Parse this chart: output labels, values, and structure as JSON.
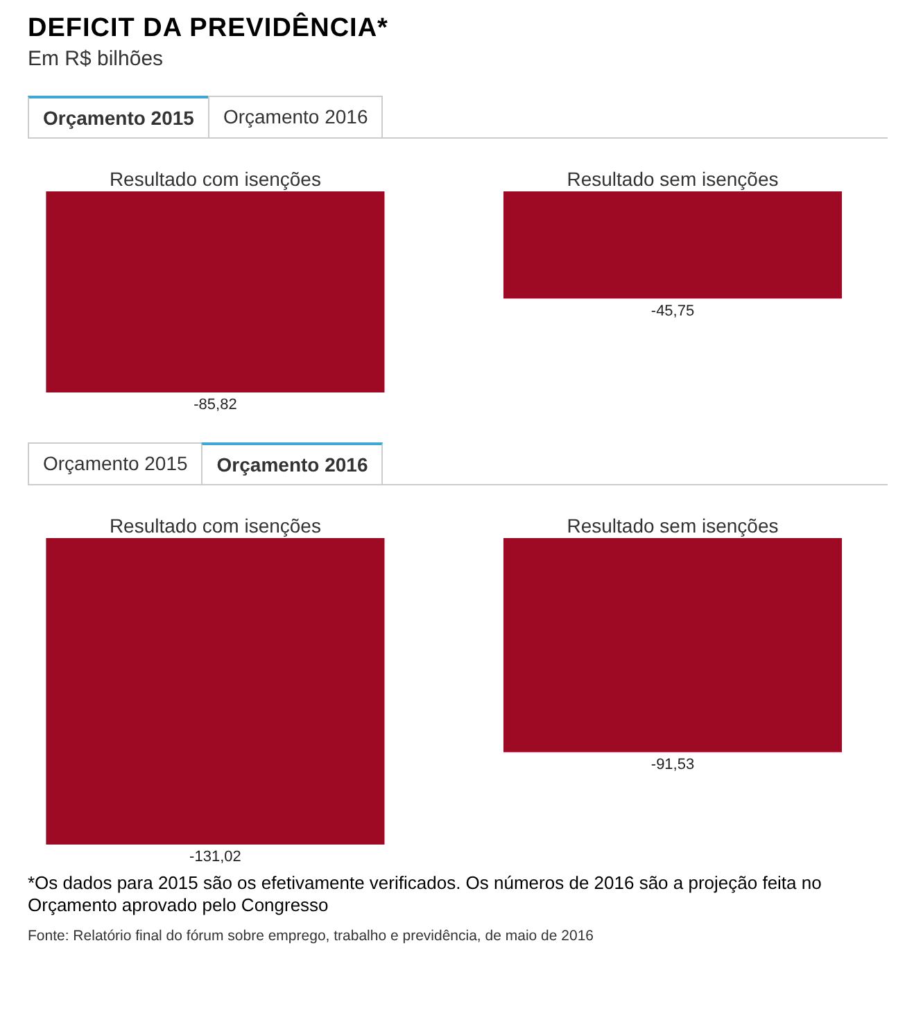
{
  "chart_data": [
    {
      "type": "bar",
      "title": "DEFICIT DA PREVIDÊNCIA*",
      "subtitle": "Em R$ bilhões",
      "categories": [
        "Resultado com isenções",
        "Resultado sem isenções"
      ],
      "values": [
        -85.82,
        -45.75
      ],
      "color": "#9e0a23",
      "value_labels": [
        "-85,82",
        "-45,75"
      ],
      "annotations": [
        "Orçamento 2015",
        "Orçamento 2016"
      ]
    },
    {
      "type": "bar",
      "categories": [
        "Resultado com isenções",
        "Resultado sem isenções"
      ],
      "values": [
        -131.02,
        -91.53
      ],
      "color": "#9e0a23",
      "value_labels": [
        "-131,02",
        "-91,53"
      ],
      "annotations": [
        "Orçamento 2015",
        "Orçamento 2016",
        "*Os dados para 2015 são os efetivamente verificados. Os números de 2016 são a projeção feita no Orçamento aprovado pelo Congresso",
        "Fonte: Relatório final do fórum sobre emprego, trabalho e previdência, de maio de 2016"
      ]
    }
  ]
}
